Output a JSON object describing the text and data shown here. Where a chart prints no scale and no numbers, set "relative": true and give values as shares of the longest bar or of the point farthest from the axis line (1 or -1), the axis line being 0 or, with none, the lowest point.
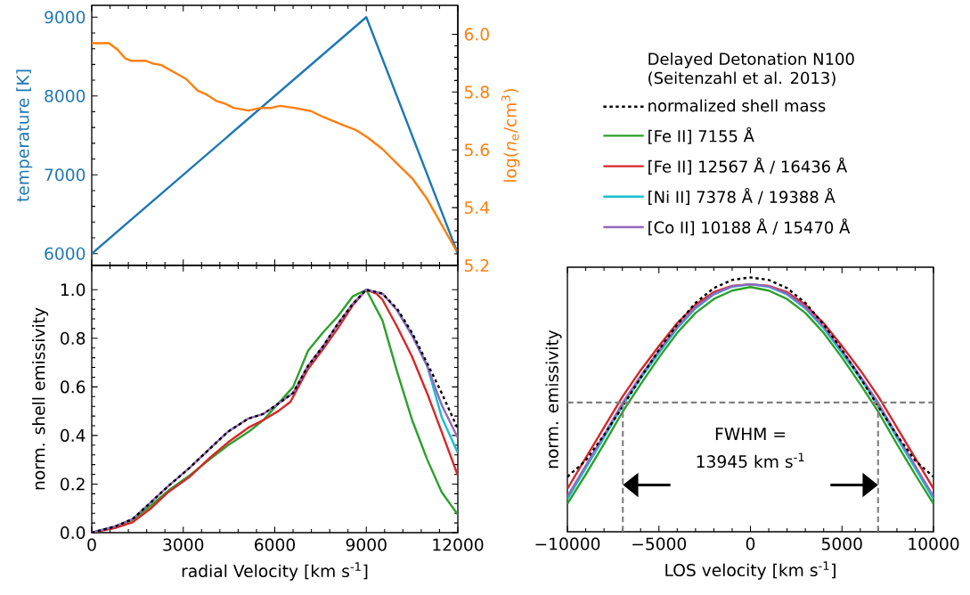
{
  "chart_data": [
    {
      "type": "line",
      "xlim": [
        0,
        12000
      ],
      "xticks": [
        0,
        3000,
        6000,
        9000,
        12000
      ],
      "ylim": [
        5850,
        9150
      ],
      "yticks": [
        6000,
        7000,
        8000,
        9000
      ],
      "y2lim": [
        5.2,
        6.1
      ],
      "y2ticks": [
        5.2,
        5.4,
        5.6,
        5.8,
        {
          "value": 6,
          "label": "6.0"
        }
      ],
      "ylabel": "temperature [K]",
      "y2label": "log(*n*$_{e}$/cm$^{3}$)",
      "tick_labels": "y",
      "series": [
        {
          "color": "#1f77b4",
          "x": [
            0,
            9000,
            12000
          ],
          "values": [
            6000,
            9000,
            6000
          ]
        },
        {
          "color": "#ff7f0e",
          "axis": "y2",
          "x": [
            0,
            565,
            857,
            1100,
            1295,
            1782,
            2026,
            2270,
            2708,
            3097,
            3467,
            3730,
            4071,
            4364,
            4656,
            5143,
            5533,
            5873,
            6166,
            6604,
            7188,
            7578,
            8162,
            8649,
            9039,
            9526,
            10013,
            10500,
            10987,
            11474,
            11961
          ],
          "values": [
            5.969,
            5.969,
            5.946,
            5.916,
            5.908,
            5.908,
            5.898,
            5.894,
            5.868,
            5.845,
            5.805,
            5.793,
            5.77,
            5.76,
            5.745,
            5.736,
            5.745,
            5.745,
            5.752,
            5.746,
            5.734,
            5.714,
            5.689,
            5.669,
            5.643,
            5.603,
            5.552,
            5.502,
            5.431,
            5.34,
            5.249
          ]
        }
      ]
    },
    {
      "type": "line",
      "xlim": [
        0,
        12000
      ],
      "xticks": [
        0,
        3000,
        6000,
        9000,
        12000
      ],
      "ylim": [
        0,
        1.1
      ],
      "yticks": [
        {
          "value": 0,
          "label": "0.0"
        },
        0.2,
        0.4,
        0.6,
        0.8,
        {
          "value": 1,
          "label": "1.0"
        }
      ],
      "xlabel": "radial Velocity [km s$^{-1}$]",
      "ylabel": "norm. shell emissivity",
      "series": [
        {
          "color": "#000000",
          "line_style": "dotted",
          "x": [
            0,
            760,
            1340,
            1930,
            2510,
            3200,
            3880,
            4460,
            5140,
            5630,
            6120,
            6600,
            7090,
            7580,
            8070,
            8550,
            9000,
            9530,
            10010,
            10500,
            10990,
            11470,
            12000
          ],
          "values": [
            0,
            0.025,
            0.056,
            0.124,
            0.192,
            0.266,
            0.347,
            0.415,
            0.47,
            0.489,
            0.532,
            0.575,
            0.687,
            0.767,
            0.86,
            0.941,
            1.0,
            0.984,
            0.922,
            0.823,
            0.699,
            0.575,
            0.427
          ]
        },
        {
          "color": "#2ca02c",
          "x": [
            0,
            760,
            1340,
            1930,
            2510,
            3200,
            3880,
            4460,
            5140,
            5630,
            6120,
            6600,
            7090,
            7580,
            8070,
            8550,
            9000,
            9530,
            10010,
            10500,
            10990,
            11470,
            12000
          ],
          "values": [
            0,
            0.025,
            0.053,
            0.111,
            0.173,
            0.235,
            0.303,
            0.359,
            0.415,
            0.464,
            0.532,
            0.6,
            0.749,
            0.824,
            0.891,
            0.972,
            1.0,
            0.873,
            0.662,
            0.464,
            0.303,
            0.167,
            0.074
          ]
        },
        {
          "color": "#d62728",
          "x": [
            0,
            760,
            1340,
            1930,
            2510,
            3200,
            3880,
            4460,
            5140,
            5630,
            6120,
            6510,
            7090,
            7580,
            8070,
            8550,
            9000,
            9330,
            9530,
            10010,
            10500,
            10990,
            11470,
            12000
          ],
          "values": [
            0,
            0.019,
            0.043,
            0.099,
            0.167,
            0.229,
            0.309,
            0.371,
            0.433,
            0.464,
            0.501,
            0.538,
            0.674,
            0.755,
            0.842,
            0.935,
            1.0,
            0.984,
            0.959,
            0.848,
            0.724,
            0.575,
            0.415,
            0.235
          ]
        },
        {
          "color": "#17becf",
          "x": [
            10010,
            10500,
            10990,
            11470,
            12000
          ],
          "values": [
            0.915,
            0.815,
            0.69,
            0.476,
            0.328
          ]
        },
        {
          "color": "#9467bd",
          "x": [
            0,
            760,
            1340,
            1930,
            2510,
            3200,
            3880,
            4460,
            5140,
            5630,
            6120,
            6600,
            7090,
            7580,
            8070,
            8550,
            9000,
            9530,
            10010,
            10500,
            10990,
            11470,
            12000
          ],
          "values": [
            0,
            0.025,
            0.056,
            0.124,
            0.192,
            0.266,
            0.347,
            0.415,
            0.47,
            0.489,
            0.532,
            0.575,
            0.687,
            0.767,
            0.86,
            0.941,
            1.0,
            0.984,
            0.915,
            0.811,
            0.687,
            0.526,
            0.39
          ]
        }
      ]
    },
    {
      "type": "line",
      "relative": true,
      "xlim": [
        -10000,
        10000
      ],
      "xticks": [
        {
          "value": -10000,
          "label": "−10000"
        },
        {
          "value": -5000,
          "label": "−5000"
        },
        0,
        5000,
        10000
      ],
      "xlabel": "LOS velocity [km s$^{-1}$]",
      "ylabel": "norm. emissivity",
      "legend": "top",
      "legend_title": "Delayed Detonation N100 (Seitenzahl et al. 2013)",
      "x": [
        -10000,
        -9000,
        -8000,
        -7000,
        -6000,
        -5000,
        -4000,
        -3000,
        -2000,
        -1000,
        0,
        1000,
        2000,
        3000,
        4000,
        5000,
        6000,
        7000,
        8000,
        9000,
        10000
      ],
      "series": [
        {
          "name": "normalized shell mass",
          "color": "#000000",
          "line_style": "dotted",
          "values": [
            0.216,
            0.28,
            0.38,
            0.49,
            0.605,
            0.715,
            0.815,
            0.9,
            0.958,
            0.99,
            1.0,
            0.99,
            0.958,
            0.9,
            0.815,
            0.715,
            0.605,
            0.49,
            0.38,
            0.28,
            0.216
          ]
        },
        {
          "name": "[Fe II] 7155 Å",
          "color": "#2ca02c",
          "values": [
            0.11,
            0.225,
            0.345,
            0.47,
            0.58,
            0.685,
            0.782,
            0.86,
            0.915,
            0.948,
            0.962,
            0.948,
            0.915,
            0.86,
            0.782,
            0.685,
            0.58,
            0.47,
            0.345,
            0.225,
            0.11
          ]
        },
        {
          "name": "[Fe II] 12567 Å / 16436 Å",
          "color": "#d62728",
          "values": [
            0.169,
            0.29,
            0.41,
            0.53,
            0.635,
            0.73,
            0.82,
            0.893,
            0.942,
            0.967,
            0.973,
            0.967,
            0.942,
            0.893,
            0.82,
            0.73,
            0.635,
            0.53,
            0.41,
            0.29,
            0.169
          ]
        },
        {
          "name": "[Ni II] 7378 Å / 19388 Å",
          "color": "#17becf",
          "values": [
            0.128,
            0.25,
            0.37,
            0.495,
            0.603,
            0.703,
            0.8,
            0.878,
            0.933,
            0.963,
            0.973,
            0.963,
            0.933,
            0.878,
            0.8,
            0.703,
            0.603,
            0.495,
            0.37,
            0.25,
            0.128
          ]
        },
        {
          "name": "[Co II] 10188 Å / 15470 Å",
          "color": "#9467bd",
          "values": [
            0.139,
            0.26,
            0.38,
            0.505,
            0.612,
            0.712,
            0.806,
            0.883,
            0.936,
            0.965,
            0.973,
            0.965,
            0.936,
            0.883,
            0.806,
            0.712,
            0.612,
            0.505,
            0.38,
            0.26,
            0.139
          ]
        }
      ],
      "ref_lines": [
        {
          "axis": "y",
          "value": 0.508,
          "color": "#808080",
          "line_style": "dashed"
        },
        {
          "axis": "x",
          "value": -6972.5,
          "color": "#808080",
          "line_style": "dashed"
        },
        {
          "axis": "x",
          "value": 6972.5,
          "color": "#808080",
          "line_style": "dashed"
        }
      ],
      "annotations": [
        "FWHM =",
        "13945 km s$^{-1}$"
      ]
    }
  ]
}
